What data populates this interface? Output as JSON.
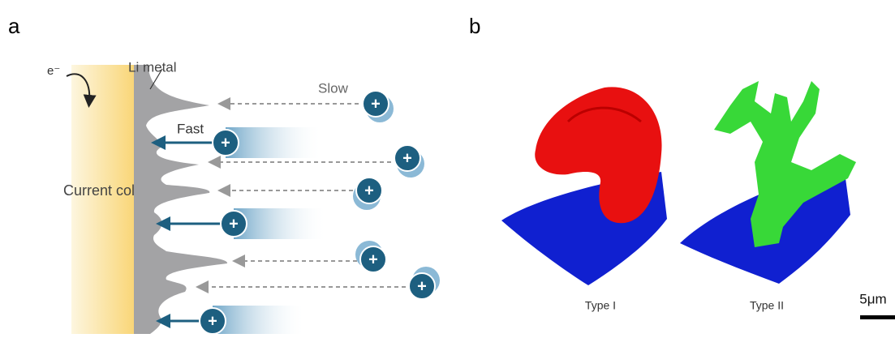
{
  "panels": {
    "a": "a",
    "b": "b"
  },
  "diagram_a": {
    "electron": "e⁻",
    "li_metal": "Li metal",
    "slow": "Slow",
    "fast": "Fast",
    "current_collector": "Current collector",
    "ions": [
      "+",
      "+",
      "+",
      "+",
      "+",
      "+",
      "+",
      "+"
    ]
  },
  "diagram_b": {
    "type_1": "Type I",
    "type_2": "Type II",
    "scale_bar": "5μm"
  }
}
